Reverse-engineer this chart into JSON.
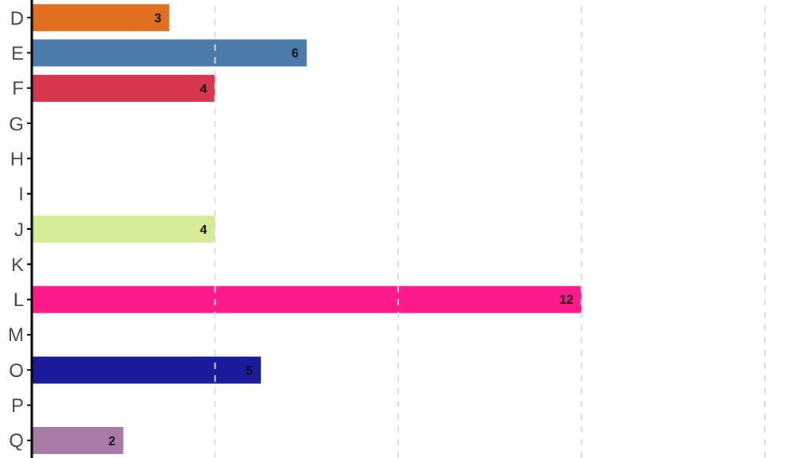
{
  "chart_data": {
    "type": "bar",
    "orientation": "horizontal",
    "categories": [
      "D",
      "E",
      "F",
      "G",
      "H",
      "I",
      "J",
      "K",
      "L",
      "M",
      "O",
      "P",
      "Q"
    ],
    "values": [
      3,
      6,
      4,
      0,
      0,
      0,
      4,
      0,
      12,
      0,
      5,
      0,
      2
    ],
    "colors": [
      "#e0701f",
      "#4a7bab",
      "#d6374f",
      "#999999",
      "#999999",
      "#999999",
      "#d5eb98",
      "#999999",
      "#fe1a8a",
      "#999999",
      "#1b1a9a",
      "#999999",
      "#a87aa6"
    ],
    "value_labels": [
      "3",
      "6",
      "4",
      null,
      null,
      null,
      "4",
      null,
      "12",
      null,
      "5",
      null,
      "2"
    ],
    "xlim": [
      0,
      16
    ],
    "xticks": [
      {
        "value": 0,
        "label": null
      },
      {
        "value": 4,
        "label": null
      },
      {
        "value": 8,
        "label": null
      },
      {
        "value": 12,
        "label": null
      },
      {
        "value": 16,
        "label": null
      }
    ],
    "grid": "x",
    "tick_labels": "y"
  }
}
